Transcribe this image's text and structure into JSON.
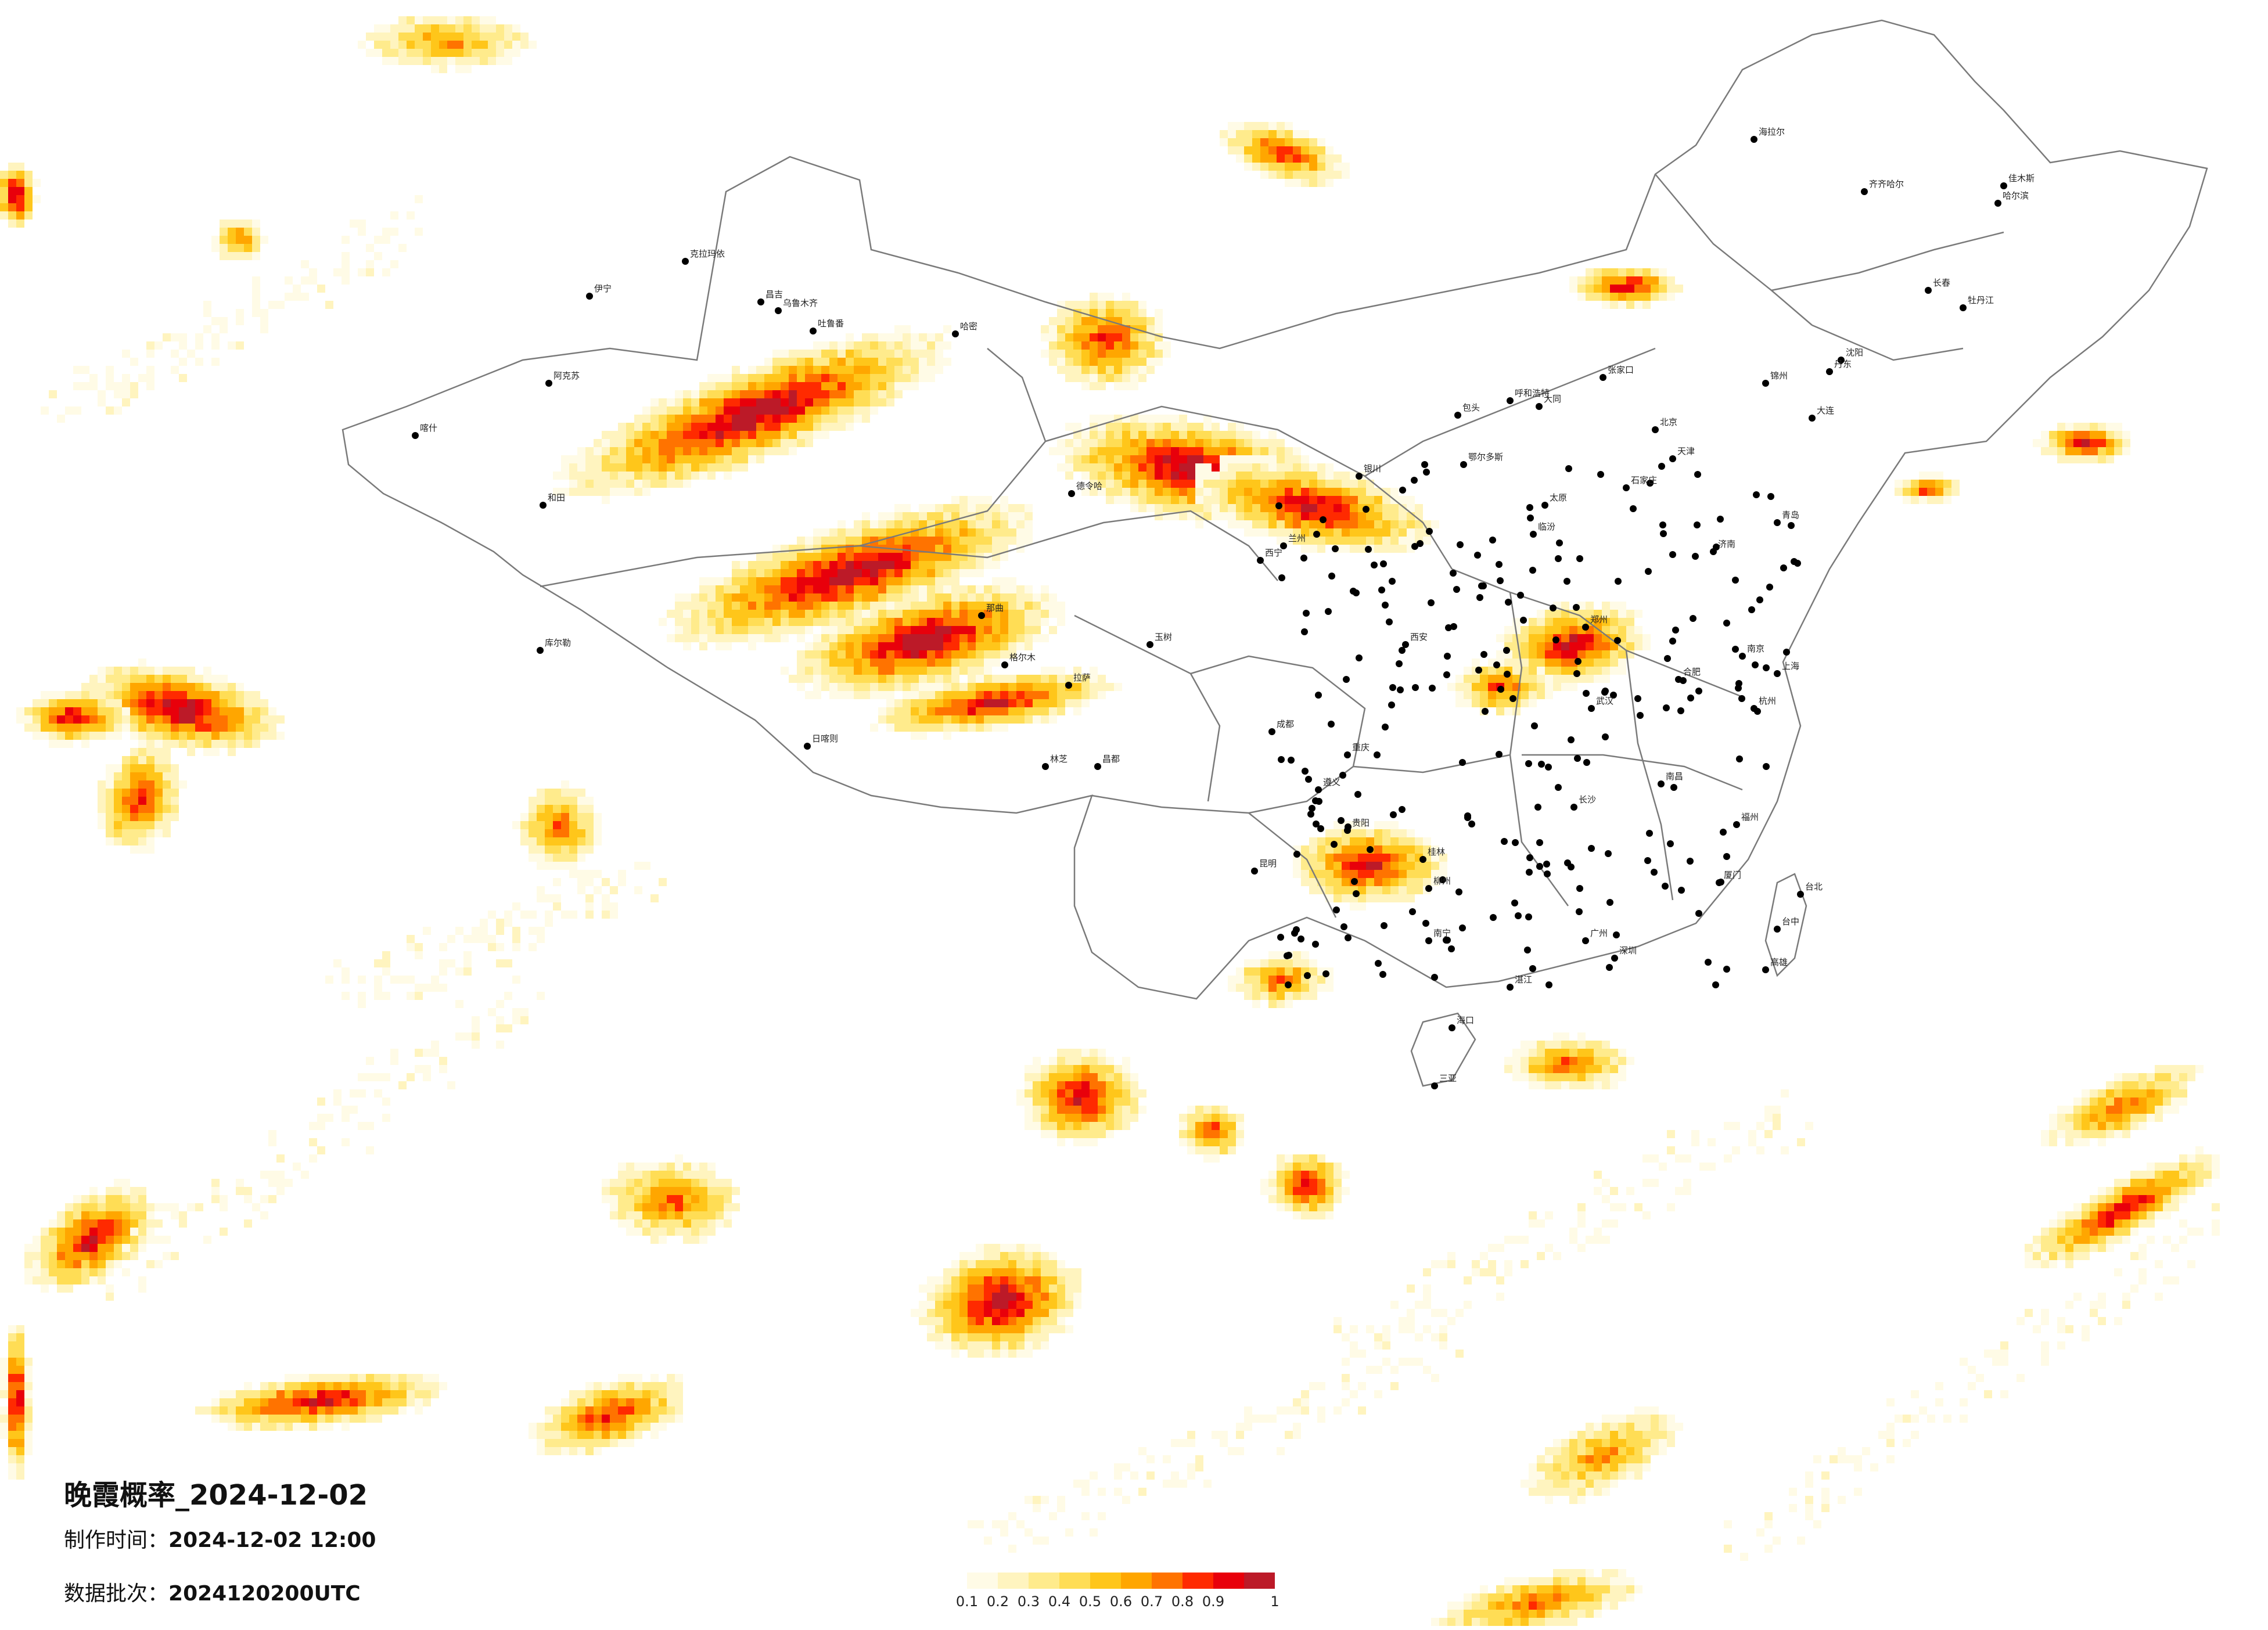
{
  "title": "晚霞概率_2024-12-02",
  "made_time_label": "制作时间：",
  "made_time_value": "2024-12-02 12:00",
  "batch_label": "数据批次：",
  "batch_value": "2024120200UTC",
  "legend": {
    "ticks": [
      "0.1",
      "0.2",
      "0.3",
      "0.4",
      "0.5",
      "0.6",
      "0.7",
      "0.8",
      "0.9",
      "1"
    ],
    "colors": [
      "#fffbe6",
      "#fff4bf",
      "#ffeb8c",
      "#ffdd55",
      "#ffc61a",
      "#ffa600",
      "#ff7300",
      "#ff2a00",
      "#e8000b",
      "#bc1a28"
    ]
  },
  "cities": [
    "克拉玛依",
    "伊宁",
    "昌吉",
    "乌鲁木齐",
    "吐鲁番",
    "哈密",
    "阿克苏",
    "喀什",
    "和田",
    "库尔勒",
    "格尔木",
    "德令哈",
    "西宁",
    "兰州",
    "银川",
    "呼和浩特",
    "包头",
    "鄂尔多斯",
    "北京",
    "天津",
    "石家庄",
    "太原",
    "济南",
    "青岛",
    "郑州",
    "西安",
    "武汉",
    "长沙",
    "南昌",
    "南京",
    "上海",
    "杭州",
    "合肥",
    "福州",
    "厦门",
    "广州",
    "深圳",
    "南宁",
    "海口",
    "昆明",
    "贵阳",
    "成都",
    "重庆",
    "拉萨",
    "日喀则",
    "林芝",
    "哈尔滨",
    "长春",
    "沈阳",
    "大连",
    "齐齐哈尔",
    "海拉尔",
    "佳木斯",
    "牡丹江",
    "台北",
    "台中",
    "高雄",
    "玉树",
    "昌都",
    "那曲",
    "遵义",
    "桂林",
    "柳州",
    "湛江",
    "三亚",
    "丹东",
    "锦州",
    "张家口",
    "大同",
    "临汾"
  ]
}
